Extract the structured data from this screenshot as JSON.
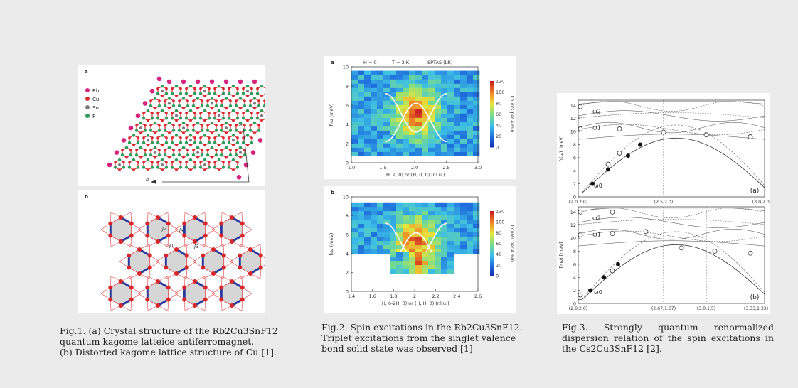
{
  "fig1": {
    "panel_a_label": "a",
    "panel_b_label": "b",
    "legend": [
      {
        "label": "Rb",
        "color": "#d6247e"
      },
      {
        "label": "Cu",
        "color": "#d9262b"
      },
      {
        "label": "Sn",
        "color": "#7a7a7a"
      },
      {
        "label": "F",
        "color": "#2e9e5b"
      }
    ],
    "axis_a": "a",
    "axis_b": "b",
    "couplings": [
      "J2",
      "J4",
      "J1",
      "J3"
    ],
    "caption": [
      "Fig.1. (a) Crystal structure of the Rb2Cu3SnF12",
      "quantum kagome latteice antiferromagnet.",
      "(b) Distorted kagome lattice structure of Cu [1]."
    ]
  },
  "fig2": {
    "panel_a_label": "a",
    "panel_b_label": "b",
    "top_info": [
      "H = 0",
      "T = 3 K",
      "SPTAS (LR)"
    ],
    "ylabel": "ħω (meV)",
    "xlabel_a": "(H, 2, 0) or (H, 0, 0) (r.l.u.)",
    "xlabel_b": "(H, 6-2H, 0) or (H, H, 0) (r.l.u.)",
    "xticks_a": [
      "1.0",
      "1.5",
      "2.0",
      "2.5",
      "3.0"
    ],
    "xticks_b": [
      "1.4",
      "1.6",
      "1.8",
      "2",
      "2.2",
      "2.4",
      "2.6"
    ],
    "yticks": [
      "0",
      "2",
      "4",
      "6",
      "8",
      "10"
    ],
    "colorbar_label": "Counts per 4 min",
    "colorbar_ticks": [
      "120",
      "100",
      "80",
      "60",
      "40",
      "20",
      "0"
    ],
    "caption": [
      "Fig.2. Spin excitations in the Rb2Cu3SnF12.",
      "Triplet excitations from the singlet valence",
      "bond solid state was observed [1]"
    ]
  },
  "fig3": {
    "ylabel": "ħ(ω) [meV]",
    "yticks": [
      "0",
      "2",
      "4",
      "6",
      "8",
      "10",
      "12",
      "14"
    ],
    "panel_a_tag": "(a)",
    "panel_b_tag": "(b)",
    "xticks_a": [
      "(2.0,2.0)",
      "(2.5,2.0)",
      "(3.0,2.0)"
    ],
    "xticks_b": [
      "(2.0,2.0)",
      "(2.67,1.67)",
      "(3.0,1.5)",
      "(3.33,1.33)"
    ],
    "mode_labels": [
      "ω2",
      "ω1",
      "ω0"
    ],
    "caption": [
      "Fig.3. Strongly quantum renormalized",
      "dispersion relation of the spin excitations in",
      "the Cs2Cu3SnF12 [2]."
    ]
  }
}
